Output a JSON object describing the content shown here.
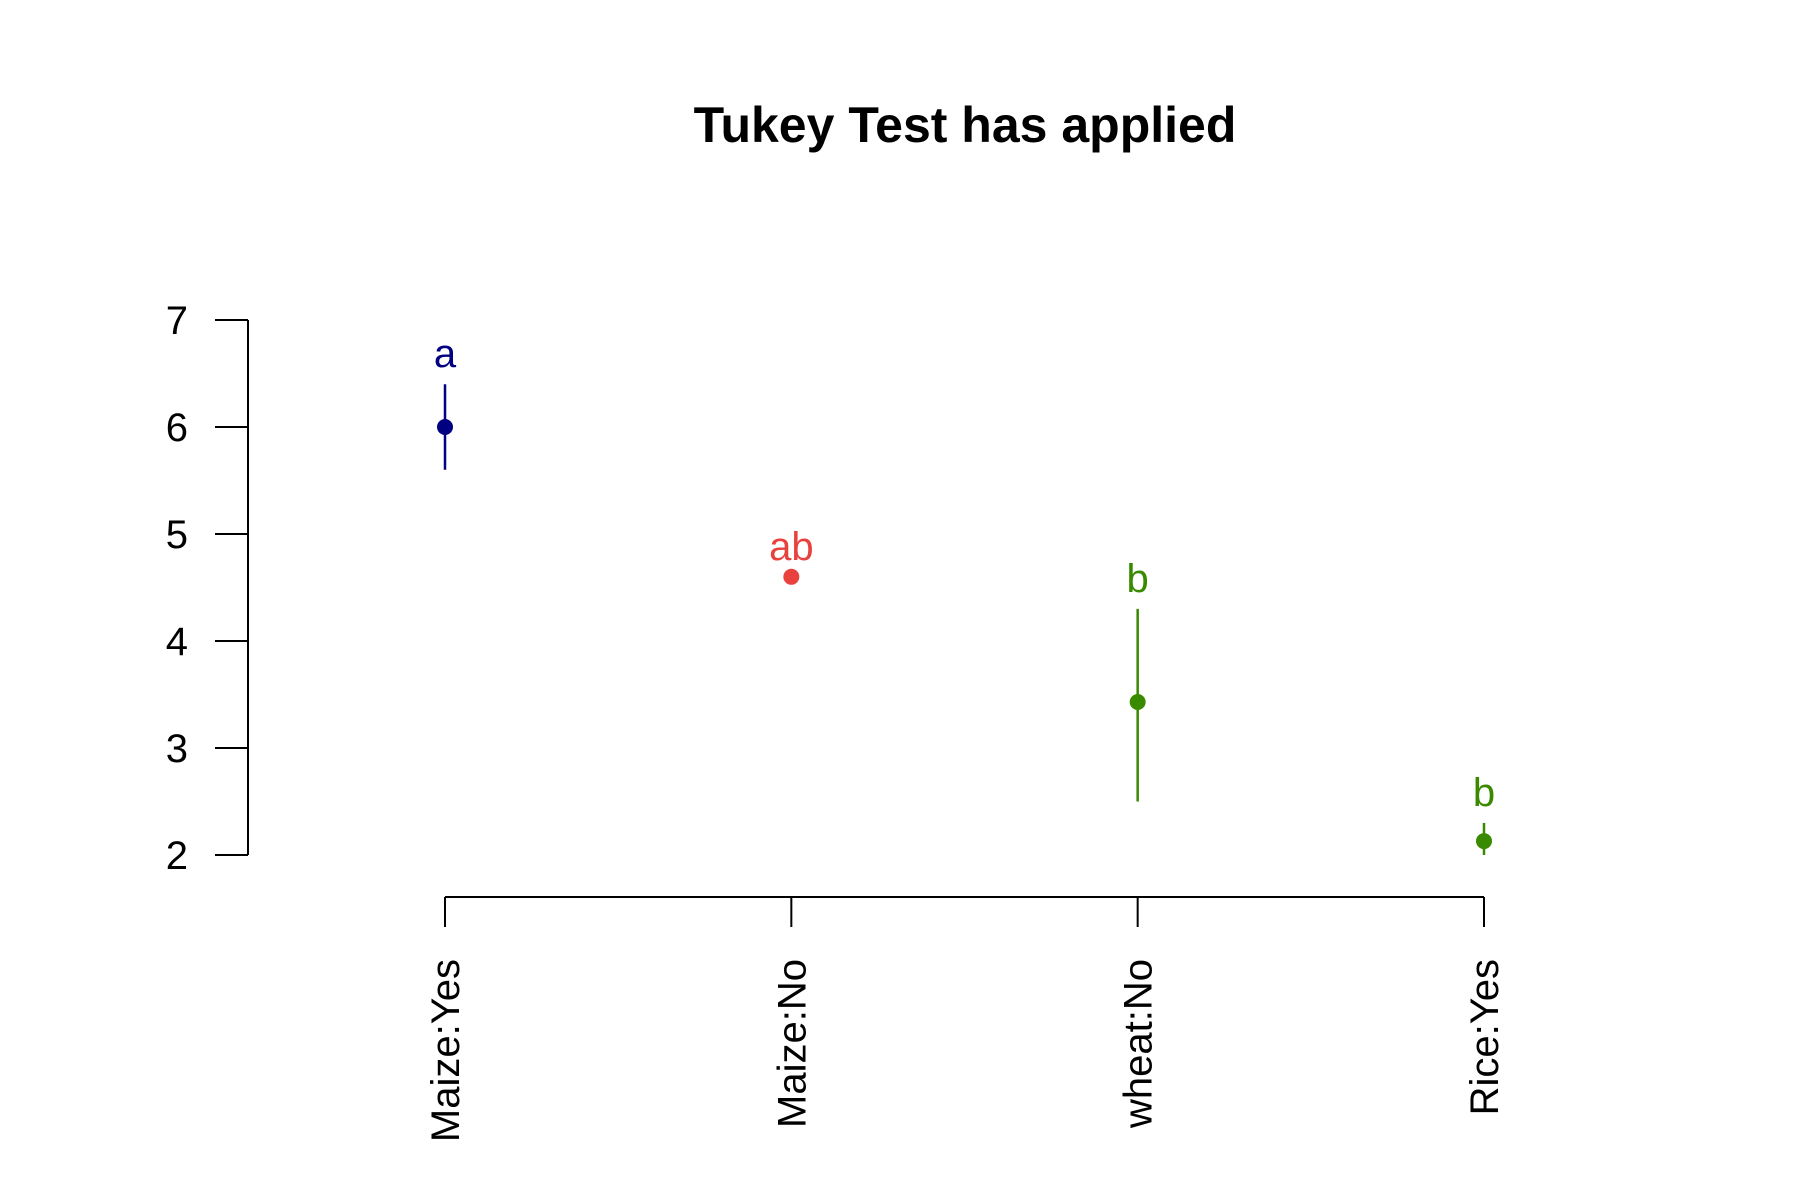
{
  "chart_data": {
    "type": "scatter",
    "title": "Tukey Test has applied",
    "xlabel": "",
    "ylabel": "",
    "ylim": [
      2,
      7
    ],
    "y_ticks": [
      2,
      3,
      4,
      5,
      6,
      7
    ],
    "categories": [
      "Maize:Yes",
      "Maize:No",
      "wheat:No",
      "Rice:Yes"
    ],
    "points": [
      {
        "category": "Maize:Yes",
        "mean": 6.0,
        "lower": 5.6,
        "upper": 6.4,
        "group": "a",
        "color": "#000080"
      },
      {
        "category": "Maize:No",
        "mean": 4.6,
        "lower": 4.6,
        "upper": 4.6,
        "group": "ab",
        "color": "#E8413E"
      },
      {
        "category": "wheat:No",
        "mean": 3.43,
        "lower": 2.5,
        "upper": 4.3,
        "group": "b",
        "color": "#3A8A00"
      },
      {
        "category": "Rice:Yes",
        "mean": 2.13,
        "lower": 2.0,
        "upper": 2.3,
        "group": "b",
        "color": "#3A8A00"
      }
    ],
    "grid": false,
    "legend": "none"
  }
}
